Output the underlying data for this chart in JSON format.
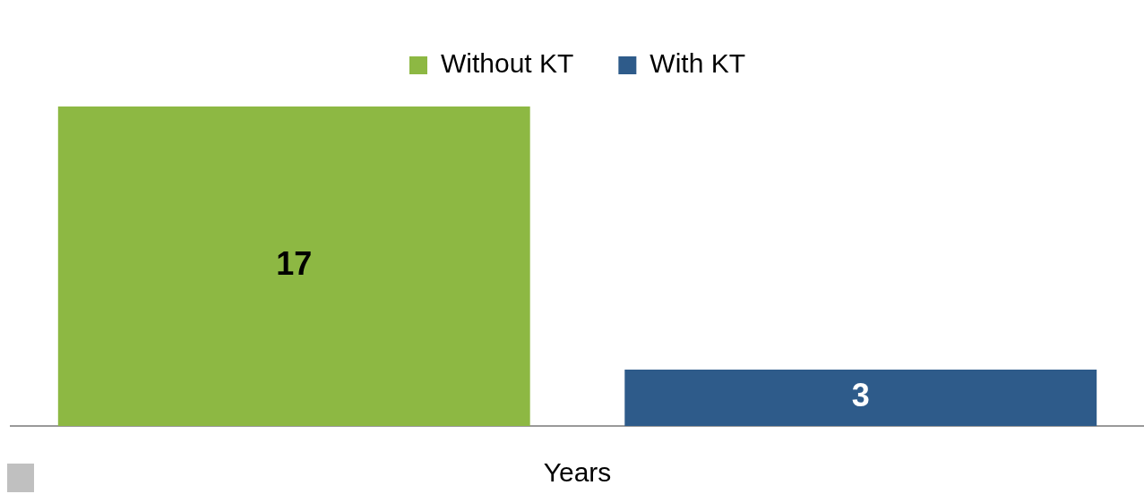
{
  "chart_data": {
    "type": "bar",
    "categories": [
      null
    ],
    "series": [
      {
        "name": "Without KT",
        "color": "#8db843",
        "values": [
          17
        ]
      },
      {
        "name": "With KT",
        "color": "#2e5b8a",
        "values": [
          3
        ]
      }
    ],
    "xlabel": "Years",
    "data_labels": true,
    "legend": "top",
    "grid": false,
    "tick_labels": false
  }
}
